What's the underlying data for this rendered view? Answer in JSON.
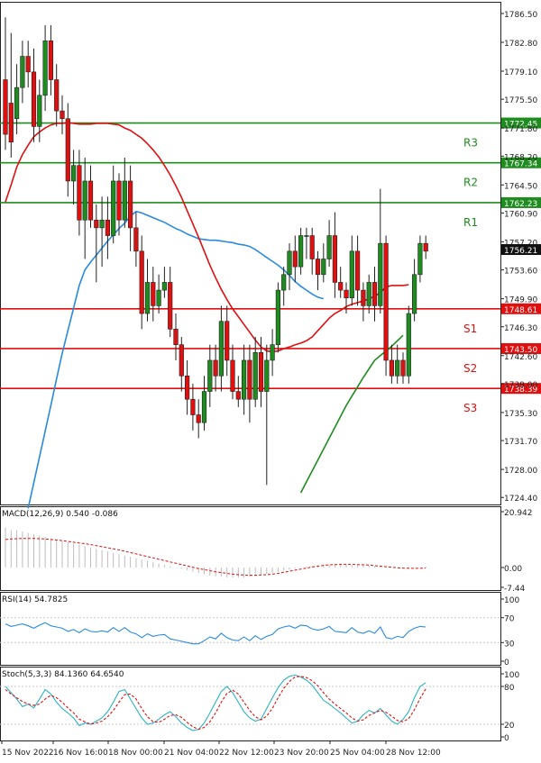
{
  "chart_data": {
    "type": "candlestick",
    "symbol": "",
    "x_tick_labels": [
      "15 Nov 2022",
      "16 Nov 16:00",
      "18 Nov 00:00",
      "21 Nov 04:00",
      "22 Nov 12:00",
      "23 Nov 20:00",
      "25 Nov 04:00",
      "28 Nov 12:00"
    ],
    "price_axis": {
      "ylim": [
        1723.5,
        1788.0
      ],
      "ticks": [
        1786.5,
        1782.8,
        1779.1,
        1775.5,
        1771.8,
        1768.2,
        1764.5,
        1760.9,
        1757.2,
        1753.6,
        1749.9,
        1746.3,
        1742.6,
        1739.0,
        1735.3,
        1731.7,
        1728.0,
        1724.4
      ],
      "tick_labels": [
        "1786.50",
        "1782.80",
        "1779.10",
        "1775.50",
        "1771.80",
        "1768.20",
        "1764.50",
        "1760.90",
        "1757.20",
        "1753.60",
        "1749.90",
        "1746.30",
        "1742.60",
        "1739.00",
        "1735.30",
        "1731.70",
        "1728.00",
        "1724.40"
      ]
    },
    "levels": [
      {
        "name": "R3",
        "value": 1772.45,
        "label": "1772.45",
        "color": "#1e8c1e"
      },
      {
        "name": "R2",
        "value": 1767.34,
        "label": "1767.34",
        "color": "#1e8c1e"
      },
      {
        "name": "R1",
        "value": 1762.23,
        "label": "1762.23",
        "color": "#1e8c1e"
      },
      {
        "name": "S1",
        "value": 1748.61,
        "label": "1748.61",
        "color": "#e01010"
      },
      {
        "name": "S2",
        "value": 1743.5,
        "label": "1743.50",
        "color": "#e01010"
      },
      {
        "name": "S3",
        "value": 1738.39,
        "label": "1738.39",
        "color": "#e01010"
      }
    ],
    "current_price": {
      "value": 1756.21,
      "label": "1756.21"
    },
    "candles": [
      [
        1778,
        1771,
        1786,
        1769
      ],
      [
        1775,
        1770,
        1784,
        1768
      ],
      [
        1773,
        1777,
        1780,
        1771
      ],
      [
        1777,
        1781,
        1783,
        1775
      ],
      [
        1781,
        1779,
        1783,
        1777
      ],
      [
        1779,
        1772,
        1782,
        1770
      ],
      [
        1772,
        1776,
        1778,
        1770
      ],
      [
        1776,
        1783,
        1785,
        1774
      ],
      [
        1783,
        1778,
        1785,
        1776
      ],
      [
        1778,
        1774,
        1780,
        1772
      ],
      [
        1774,
        1773,
        1776,
        1771
      ],
      [
        1773,
        1765,
        1775,
        1763
      ],
      [
        1765,
        1767,
        1769,
        1762
      ],
      [
        1767,
        1760,
        1769,
        1758
      ],
      [
        1760,
        1765,
        1768,
        1755
      ],
      [
        1765,
        1760,
        1767,
        1759
      ],
      [
        1760,
        1759,
        1762,
        1752
      ],
      [
        1759,
        1760,
        1763,
        1754
      ],
      [
        1760,
        1758,
        1763,
        1755
      ],
      [
        1758,
        1765,
        1767,
        1757
      ],
      [
        1765,
        1760,
        1766,
        1758
      ],
      [
        1760,
        1765,
        1768,
        1759
      ],
      [
        1765,
        1759,
        1767,
        1756
      ],
      [
        1759,
        1756,
        1761,
        1754
      ],
      [
        1756,
        1748,
        1758,
        1746
      ],
      [
        1748,
        1752,
        1755,
        1747
      ],
      [
        1752,
        1749,
        1754,
        1747
      ],
      [
        1749,
        1751,
        1753,
        1748
      ],
      [
        1751,
        1752,
        1754,
        1750
      ],
      [
        1752,
        1746,
        1754,
        1745
      ],
      [
        1746,
        1744,
        1748,
        1742
      ],
      [
        1744,
        1740,
        1745,
        1738
      ],
      [
        1740,
        1737,
        1742,
        1735
      ],
      [
        1737,
        1735,
        1739,
        1733
      ],
      [
        1735,
        1734,
        1737,
        1732
      ],
      [
        1734,
        1738,
        1740,
        1733
      ],
      [
        1738,
        1742,
        1744,
        1736
      ],
      [
        1742,
        1740,
        1744,
        1738
      ],
      [
        1740,
        1747,
        1749,
        1738
      ],
      [
        1747,
        1742,
        1749,
        1740
      ],
      [
        1742,
        1738,
        1744,
        1737
      ],
      [
        1738,
        1737,
        1740,
        1736
      ],
      [
        1737,
        1742,
        1744,
        1735
      ],
      [
        1742,
        1737,
        1744,
        1734
      ],
      [
        1737,
        1743,
        1745,
        1736
      ],
      [
        1743,
        1738,
        1745,
        1736
      ],
      [
        1738,
        1742,
        1744,
        1726
      ],
      [
        1742,
        1744,
        1746,
        1740
      ],
      [
        1744,
        1751,
        1752,
        1743
      ],
      [
        1751,
        1753,
        1754,
        1749
      ],
      [
        1753,
        1756,
        1757,
        1751
      ],
      [
        1756,
        1754,
        1758,
        1752
      ],
      [
        1754,
        1758,
        1759,
        1753
      ],
      [
        1758,
        1758,
        1759,
        1755
      ],
      [
        1758,
        1755,
        1759,
        1753
      ],
      [
        1755,
        1753,
        1756,
        1751
      ],
      [
        1753,
        1755,
        1757,
        1752
      ],
      [
        1755,
        1758,
        1760,
        1754
      ],
      [
        1758,
        1752,
        1761,
        1750
      ],
      [
        1752,
        1751,
        1754,
        1750
      ],
      [
        1751,
        1750,
        1752,
        1748
      ],
      [
        1750,
        1756,
        1758,
        1749
      ],
      [
        1756,
        1751,
        1758,
        1749
      ],
      [
        1751,
        1749,
        1752,
        1747
      ],
      [
        1749,
        1752,
        1753,
        1748
      ],
      [
        1752,
        1749,
        1754,
        1747
      ],
      [
        1749,
        1757,
        1764,
        1748
      ],
      [
        1757,
        1742,
        1758,
        1740
      ],
      [
        1742,
        1740,
        1744,
        1739
      ],
      [
        1740,
        1742,
        1744,
        1739
      ],
      [
        1742,
        1740,
        1743,
        1739
      ],
      [
        1740,
        1748,
        1749,
        1739
      ],
      [
        1748,
        1753,
        1755,
        1747
      ],
      [
        1753,
        1757,
        1758,
        1752
      ],
      [
        1757,
        1756,
        1758,
        1755
      ]
    ],
    "ma_red": [
      1762.3,
      1764.5,
      1766.8,
      1768.4,
      1769.6,
      1770.7,
      1771.3,
      1771.8,
      1772.2,
      1772.4,
      1772.4,
      1772.5,
      1772.4,
      1772.3,
      1772.3,
      1772.3,
      1772.4,
      1772.4,
      1772.4,
      1772.3,
      1772.2,
      1771.8,
      1771.5,
      1771.0,
      1770.5,
      1769.8,
      1769.0,
      1768.1,
      1767.0,
      1765.8,
      1764.4,
      1762.9,
      1761.2,
      1759.5,
      1757.8,
      1756.0,
      1754.2,
      1752.6,
      1751.1,
      1749.8,
      1748.6,
      1747.6,
      1746.6,
      1745.6,
      1744.6,
      1743.7,
      1743.2,
      1743.1,
      1743.2,
      1743.5,
      1743.7,
      1744.0,
      1744.2,
      1744.5,
      1745.0,
      1745.8,
      1746.6,
      1747.4,
      1748.0,
      1748.4,
      1748.9,
      1749.2,
      1749.4,
      1749.6,
      1749.9,
      1750.2,
      1750.7,
      1751.4,
      1751.6,
      1751.6,
      1751.6,
      1751.7
    ],
    "ma_blue": [
      1723.0,
      1726.3,
      1729.6,
      1732.9,
      1736.2,
      1739.6,
      1742.9,
      1745.8,
      1748.7,
      1751.6,
      1753.6,
      1754.6,
      1755.5,
      1756.4,
      1757.3,
      1758.1,
      1758.9,
      1759.6,
      1760.5,
      1761.1,
      1760.9,
      1760.6,
      1760.3,
      1760.0,
      1759.7,
      1759.3,
      1758.9,
      1758.6,
      1758.2,
      1757.9,
      1757.6,
      1757.5,
      1757.4,
      1757.4,
      1757.3,
      1757.2,
      1757.1,
      1756.9,
      1756.8,
      1756.6,
      1756.2,
      1755.7,
      1755.2,
      1754.7,
      1754.2,
      1753.6,
      1752.9,
      1752.1,
      1751.5,
      1751.0,
      1750.5,
      1750.1,
      1749.9
    ],
    "ma_green": [
      1725.0,
      1726.4,
      1727.8,
      1729.2,
      1730.6,
      1732.0,
      1733.4,
      1734.8,
      1736.2,
      1737.4,
      1738.6,
      1739.8,
      1740.9,
      1742.0,
      1742.6,
      1743.2,
      1743.8,
      1744.5,
      1745.2
    ],
    "macd": {
      "label": "MACD(12,26,9) 0.540 -0.086",
      "axis_labels": [
        "20.942",
        "0.00",
        "-7.44"
      ],
      "ylim": [
        -7.44,
        20.942
      ],
      "hist": [
        15,
        14,
        14,
        13.5,
        13,
        12.5,
        12,
        11.5,
        11,
        10.5,
        10,
        9.5,
        9,
        8.5,
        8,
        7.5,
        7,
        6.5,
        6,
        5.5,
        5,
        4.5,
        4,
        3.5,
        3,
        2.5,
        2,
        1.5,
        1,
        0.5,
        0,
        -0.5,
        -1.0,
        -1.5,
        -2,
        -2.5,
        -3,
        -3.3,
        -3.5,
        -3.7,
        -3.8,
        -3.8,
        -3.7,
        -3.5,
        -3.2,
        -2.8,
        -2.4,
        -2,
        -1.6,
        -1.2,
        -0.8,
        -0.4,
        0,
        0.3,
        0.6,
        0.8,
        1.0,
        1.1,
        1.2,
        1.2,
        1.1,
        1.0,
        0.9,
        0.8,
        0.7,
        0.6,
        0.5,
        0.3,
        0.1,
        -0.1,
        -0.2,
        -0.2,
        -0.1,
        0.1,
        0.3
      ],
      "signal": [
        10.5,
        10.7,
        10.8,
        10.9,
        10.9,
        10.9,
        10.8,
        10.7,
        10.5,
        10.3,
        10.1,
        9.8,
        9.5,
        9.2,
        8.9,
        8.6,
        8.2,
        7.8,
        7.4,
        7.0,
        6.6,
        6.1,
        5.6,
        5.1,
        4.6,
        4.1,
        3.6,
        3.1,
        2.6,
        2.1,
        1.6,
        1.1,
        0.6,
        0.1,
        -0.4,
        -0.8,
        -1.2,
        -1.6,
        -1.9,
        -2.2,
        -2.5,
        -2.7,
        -2.8,
        -2.9,
        -2.9,
        -2.8,
        -2.7,
        -2.5,
        -2.2,
        -1.8,
        -1.4,
        -1.0,
        -0.6,
        -0.2,
        0.2,
        0.5,
        0.8,
        1.0,
        1.1,
        1.2,
        1.2,
        1.2,
        1.1,
        1.0,
        0.9,
        0.7,
        0.5,
        0.3,
        0.1,
        -0.1,
        -0.2,
        -0.3,
        -0.3,
        -0.3,
        -0.2
      ]
    },
    "rsi": {
      "label": "RSI(14) 54.7825",
      "axis_labels": [
        "100",
        "70",
        "30",
        "0"
      ],
      "levels": [
        70,
        30
      ],
      "values": [
        60,
        56,
        58,
        60,
        57,
        53,
        58,
        62,
        57,
        55,
        53,
        48,
        51,
        46,
        52,
        48,
        47,
        49,
        47,
        54,
        48,
        54,
        47,
        44,
        38,
        44,
        40,
        42,
        43,
        36,
        34,
        32,
        30,
        28,
        28,
        33,
        39,
        36,
        45,
        38,
        34,
        33,
        39,
        33,
        41,
        35,
        40,
        43,
        52,
        55,
        57,
        53,
        58,
        57,
        52,
        50,
        52,
        56,
        48,
        47,
        46,
        54,
        47,
        45,
        49,
        45,
        55,
        38,
        36,
        40,
        38,
        48,
        53,
        56,
        55
      ]
    },
    "stoch": {
      "label": "Stoch(5,3,3) 84.1360 64.6540",
      "axis_labels": [
        "100",
        "80",
        "20",
        "0"
      ],
      "levels": [
        80,
        20
      ],
      "k": [
        80,
        70,
        60,
        48,
        52,
        46,
        60,
        75,
        68,
        55,
        45,
        38,
        30,
        18,
        22,
        20,
        25,
        30,
        40,
        55,
        72,
        75,
        60,
        45,
        30,
        20,
        22,
        28,
        35,
        40,
        32,
        22,
        15,
        10,
        12,
        22,
        38,
        55,
        72,
        80,
        70,
        55,
        40,
        30,
        25,
        28,
        45,
        62,
        78,
        90,
        96,
        98,
        95,
        90,
        82,
        70,
        58,
        52,
        45,
        38,
        30,
        22,
        25,
        35,
        42,
        38,
        45,
        35,
        25,
        20,
        28,
        40,
        62,
        80,
        86
      ],
      "d": [
        75,
        68,
        62,
        56,
        52,
        50,
        52,
        60,
        66,
        62,
        55,
        46,
        38,
        28,
        24,
        20,
        22,
        25,
        32,
        42,
        55,
        67,
        68,
        60,
        45,
        32,
        24,
        23,
        28,
        34,
        35,
        31,
        23,
        16,
        12,
        15,
        24,
        38,
        55,
        69,
        74,
        68,
        55,
        42,
        32,
        27,
        33,
        45,
        62,
        77,
        88,
        95,
        96,
        94,
        89,
        81,
        70,
        60,
        52,
        45,
        38,
        30,
        25,
        27,
        34,
        38,
        42,
        39,
        33,
        26,
        24,
        29,
        43,
        61,
        76
      ]
    }
  }
}
